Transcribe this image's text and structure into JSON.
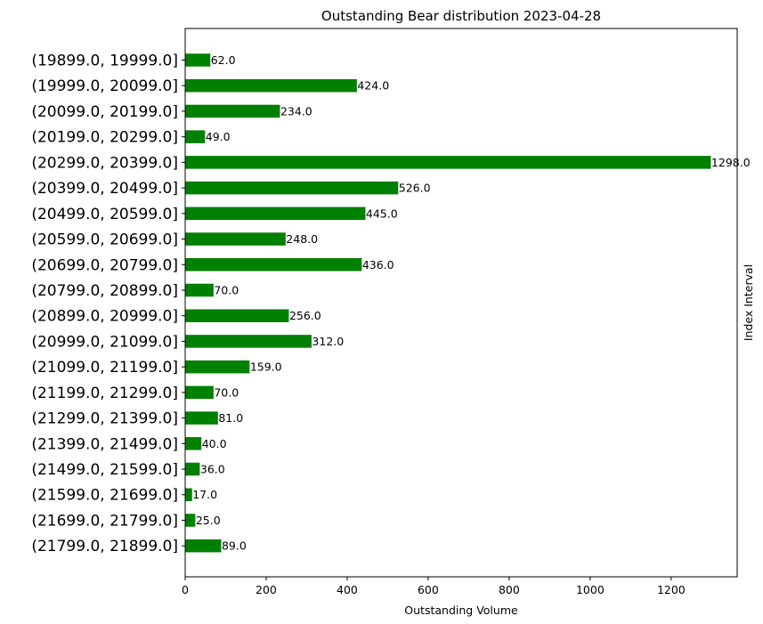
{
  "chart_data": {
    "type": "bar",
    "orientation": "horizontal",
    "title": "Outstanding Bear distribution 2023-04-28",
    "xlabel": "Outstanding Volume",
    "ylabel": "Index Interval",
    "xlim": [
      0,
      1363
    ],
    "xticks": [
      "0",
      "200",
      "400",
      "600",
      "800",
      "1000",
      "1200"
    ],
    "bar_color": "#008000",
    "grid": false,
    "categories": [
      "(19899.0, 19999.0]",
      "(19999.0, 20099.0]",
      "(20099.0, 20199.0]",
      "(20199.0, 20299.0]",
      "(20299.0, 20399.0]",
      "(20399.0, 20499.0]",
      "(20499.0, 20599.0]",
      "(20599.0, 20699.0]",
      "(20699.0, 20799.0]",
      "(20799.0, 20899.0]",
      "(20899.0, 20999.0]",
      "(20999.0, 21099.0]",
      "(21099.0, 21199.0]",
      "(21199.0, 21299.0]",
      "(21299.0, 21399.0]",
      "(21399.0, 21499.0]",
      "(21499.0, 21599.0]",
      "(21599.0, 21699.0]",
      "(21699.0, 21799.0]",
      "(21799.0, 21899.0]"
    ],
    "values": [
      62,
      424,
      234,
      49,
      1298,
      526,
      445,
      248,
      436,
      70,
      256,
      312,
      159,
      70,
      81,
      40,
      36,
      17,
      25,
      89
    ],
    "data_labels": [
      "62.0",
      "424.0",
      "234.0",
      "49.0",
      "1298.0",
      "526.0",
      "445.0",
      "248.0",
      "436.0",
      "70.0",
      "256.0",
      "312.0",
      "159.0",
      "70.0",
      "81.0",
      "40.0",
      "36.0",
      "17.0",
      "25.0",
      "89.0"
    ]
  }
}
